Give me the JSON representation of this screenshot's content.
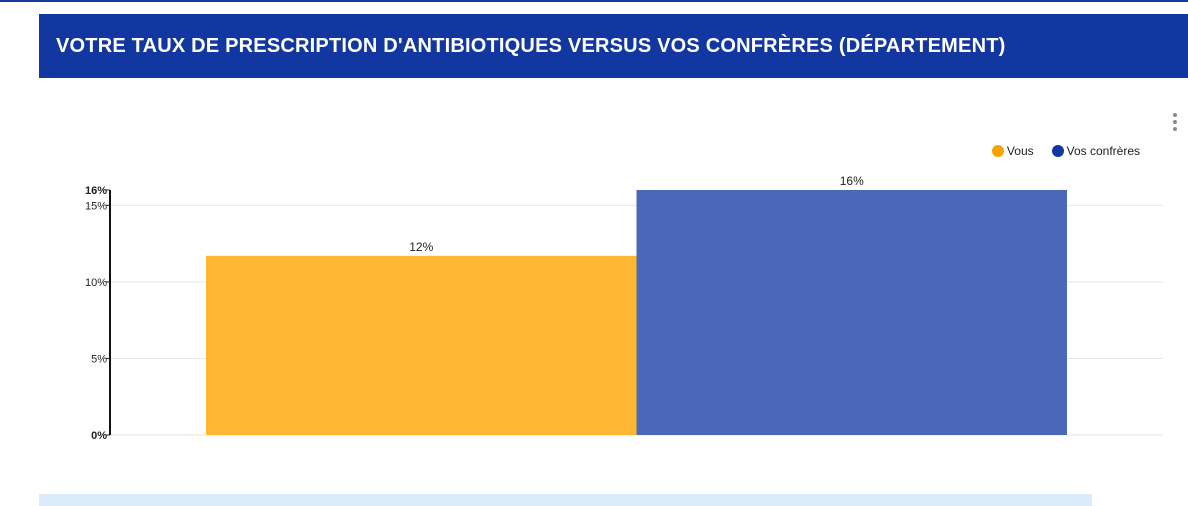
{
  "header": {
    "title": "VOTRE TAUX DE PRESCRIPTION D'ANTIBIOTIQUES VERSUS VOS CONFRÈRES (DÉPARTEMENT)"
  },
  "menu": {
    "icon": "vertical-dots-icon"
  },
  "colors": {
    "header_bg": "#1237a0",
    "vous": "#ffb733",
    "confreres": "#4a67b8",
    "legend_confreres": "#1237a0"
  },
  "chart_data": {
    "type": "bar",
    "categories": [
      ""
    ],
    "series": [
      {
        "name": "Vous",
        "values": [
          11.7
        ],
        "label": "12%",
        "color": "#ffb733"
      },
      {
        "name": "Vos confrères",
        "values": [
          16
        ],
        "label": "16%",
        "color": "#4a67b8"
      }
    ],
    "ylim": [
      0,
      16
    ],
    "yticks": [
      {
        "value": 0,
        "label": "0%",
        "bold": true
      },
      {
        "value": 5,
        "label": "5%",
        "bold": false
      },
      {
        "value": 10,
        "label": "10%",
        "bold": false
      },
      {
        "value": 15,
        "label": "15%",
        "bold": false
      },
      {
        "value": 16,
        "label": "16%",
        "bold": true
      }
    ],
    "legend": "top-right",
    "grid": true,
    "title": "",
    "xlabel": "",
    "ylabel": ""
  }
}
